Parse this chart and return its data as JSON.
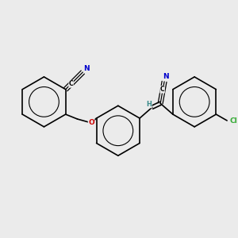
{
  "background_color": "#ebebeb",
  "bond_color": "#000000",
  "atom_colors": {
    "N": "#0000cc",
    "O": "#cc0000",
    "Cl": "#33aa33",
    "C": "#000000",
    "H": "#3a8a8a"
  },
  "figsize": [
    3.0,
    3.0
  ],
  "dpi": 100
}
